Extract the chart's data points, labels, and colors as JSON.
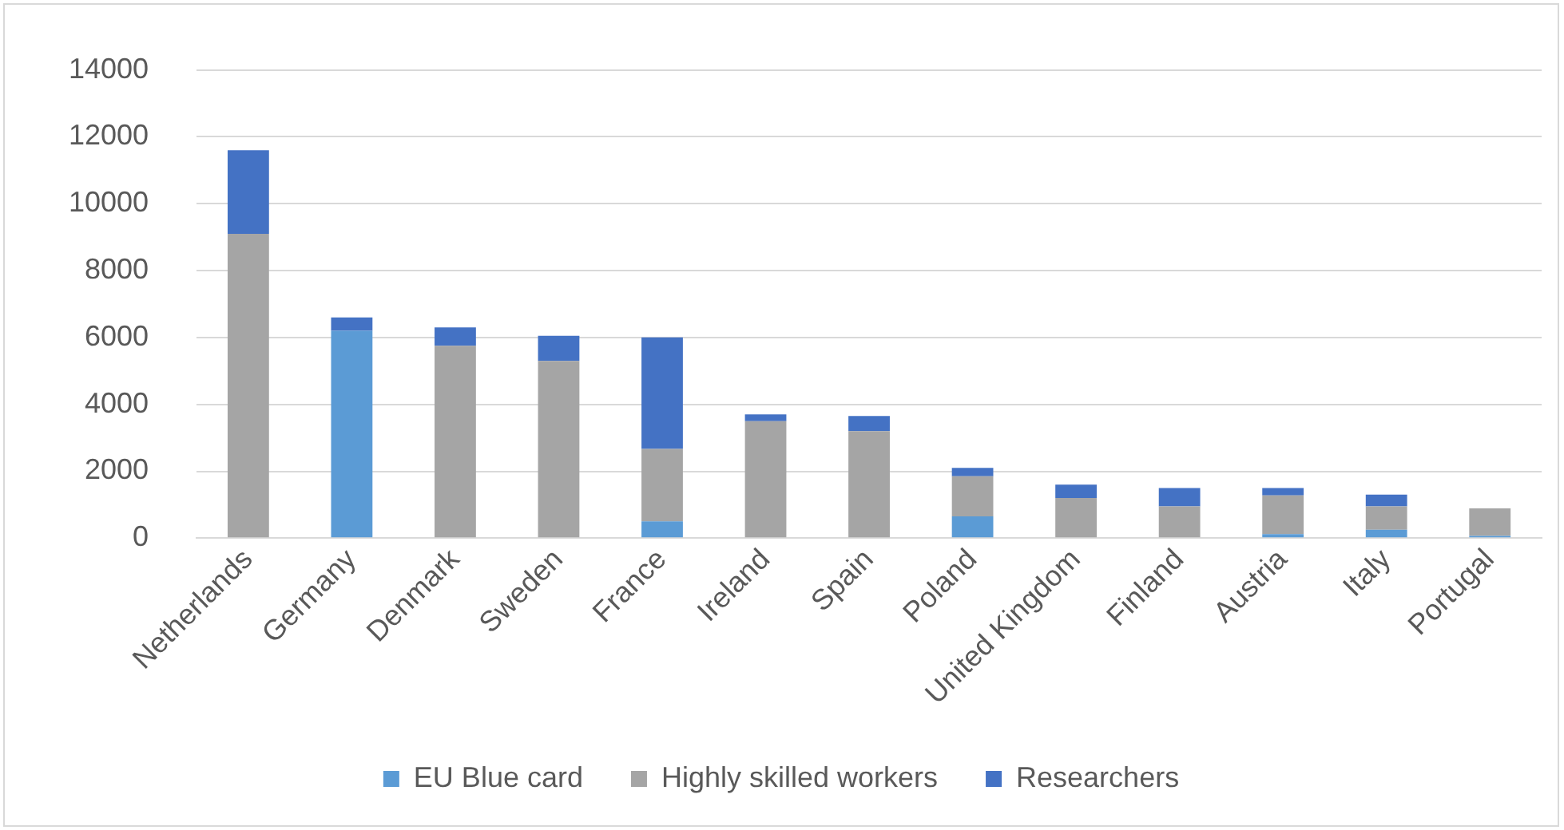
{
  "chart_data": {
    "type": "bar",
    "stacked": true,
    "categories": [
      "Netherlands",
      "Germany",
      "Denmark",
      "Sweden",
      "France",
      "Ireland",
      "Spain",
      "Poland",
      "United Kingdom",
      "Finland",
      "Austria",
      "Italy",
      "Portugal"
    ],
    "series": [
      {
        "name": "EU Blue card",
        "color": "#5b9bd5",
        "values": [
          0,
          6200,
          0,
          0,
          500,
          0,
          0,
          650,
          0,
          0,
          120,
          250,
          70
        ]
      },
      {
        "name": "Highly skilled workers",
        "color": "#a5a5a5",
        "values": [
          9100,
          0,
          5750,
          5300,
          2170,
          3500,
          3200,
          1200,
          1200,
          950,
          1160,
          700,
          820
        ]
      },
      {
        "name": "Researchers",
        "color": "#4472c4",
        "values": [
          2500,
          400,
          550,
          750,
          3330,
          200,
          450,
          250,
          400,
          550,
          220,
          350,
          0
        ]
      }
    ],
    "ylim": [
      0,
      14000
    ],
    "yticks": [
      0,
      2000,
      4000,
      6000,
      8000,
      10000,
      12000,
      14000
    ],
    "grid": "y",
    "legend": "bottom"
  }
}
